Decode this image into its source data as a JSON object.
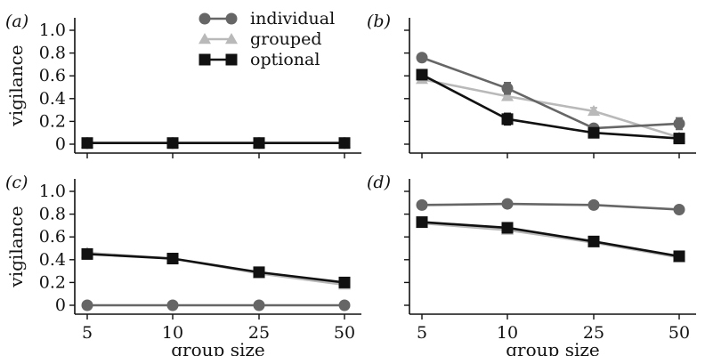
{
  "colors": {
    "individual": "#666666",
    "grouped": "#b9b9b9",
    "optional": "#111111",
    "axis": "#111111"
  },
  "legend": {
    "placement": "top-center of panel (a)",
    "entries": [
      {
        "label": "individual",
        "marker": "circle",
        "color": "#666666"
      },
      {
        "label": "grouped",
        "marker": "triangle",
        "color": "#b9b9b9"
      },
      {
        "label": "optional",
        "marker": "square",
        "color": "#111111"
      }
    ]
  },
  "shared_axes": {
    "xlabel": "group size",
    "ylabel": "vigilance",
    "x_categories": [
      "5",
      "10",
      "25",
      "50"
    ],
    "y_ticks": [
      "0",
      "0.2",
      "0.4",
      "0.6",
      "0.8",
      "1.0"
    ],
    "ylim": [
      0,
      1.0
    ],
    "x_scale": "categorical (equally spaced)"
  },
  "chart_data": [
    {
      "type": "line",
      "panel": "(a)",
      "categories": [
        "5",
        "10",
        "25",
        "50"
      ],
      "ylabel": "vigilance",
      "xlabel": "",
      "ylim": [
        0,
        1.0
      ],
      "show_y_tick_labels": true,
      "show_x_tick_labels": false,
      "series": [
        {
          "name": "individual",
          "values": [
            0.01,
            0.01,
            0.01,
            0.01
          ]
        },
        {
          "name": "grouped",
          "values": [
            0.01,
            0.01,
            0.01,
            0.01
          ]
        },
        {
          "name": "optional",
          "values": [
            0.01,
            0.01,
            0.01,
            0.01
          ]
        }
      ]
    },
    {
      "type": "line",
      "panel": "(b)",
      "categories": [
        "5",
        "10",
        "25",
        "50"
      ],
      "ylabel": "",
      "xlabel": "",
      "ylim": [
        0,
        1.0
      ],
      "show_y_tick_labels": false,
      "show_x_tick_labels": false,
      "series": [
        {
          "name": "individual",
          "values": [
            0.76,
            0.49,
            0.14,
            0.18
          ],
          "errors": [
            0.03,
            0.05,
            0.03,
            0.05
          ]
        },
        {
          "name": "grouped",
          "values": [
            0.57,
            0.42,
            0.29,
            0.06
          ],
          "errors": [
            0.03,
            0.03,
            0.03,
            0.02
          ]
        },
        {
          "name": "optional",
          "values": [
            0.61,
            0.22,
            0.1,
            0.05
          ],
          "errors": [
            0.03,
            0.05,
            0.02,
            0.02
          ]
        }
      ]
    },
    {
      "type": "line",
      "panel": "(c)",
      "categories": [
        "5",
        "10",
        "25",
        "50"
      ],
      "ylabel": "vigilance",
      "xlabel": "group size",
      "ylim": [
        0,
        1.0
      ],
      "show_y_tick_labels": true,
      "show_x_tick_labels": true,
      "series": [
        {
          "name": "individual",
          "values": [
            0.0,
            0.0,
            0.0,
            0.0
          ]
        },
        {
          "name": "grouped",
          "values": [
            0.46,
            0.41,
            0.28,
            0.18
          ]
        },
        {
          "name": "optional",
          "values": [
            0.45,
            0.41,
            0.29,
            0.2
          ],
          "errors": [
            0.02,
            0.02,
            0.02,
            0.03
          ]
        }
      ]
    },
    {
      "type": "line",
      "panel": "(d)",
      "categories": [
        "5",
        "10",
        "25",
        "50"
      ],
      "ylabel": "",
      "xlabel": "group size",
      "ylim": [
        0,
        1.0
      ],
      "show_y_tick_labels": false,
      "show_x_tick_labels": true,
      "series": [
        {
          "name": "individual",
          "values": [
            0.88,
            0.89,
            0.88,
            0.84
          ]
        },
        {
          "name": "grouped",
          "values": [
            0.72,
            0.66,
            0.55,
            0.42
          ]
        },
        {
          "name": "optional",
          "values": [
            0.73,
            0.68,
            0.56,
            0.43
          ],
          "errors": [
            0.02,
            0.02,
            0.02,
            0.02
          ]
        }
      ]
    }
  ]
}
